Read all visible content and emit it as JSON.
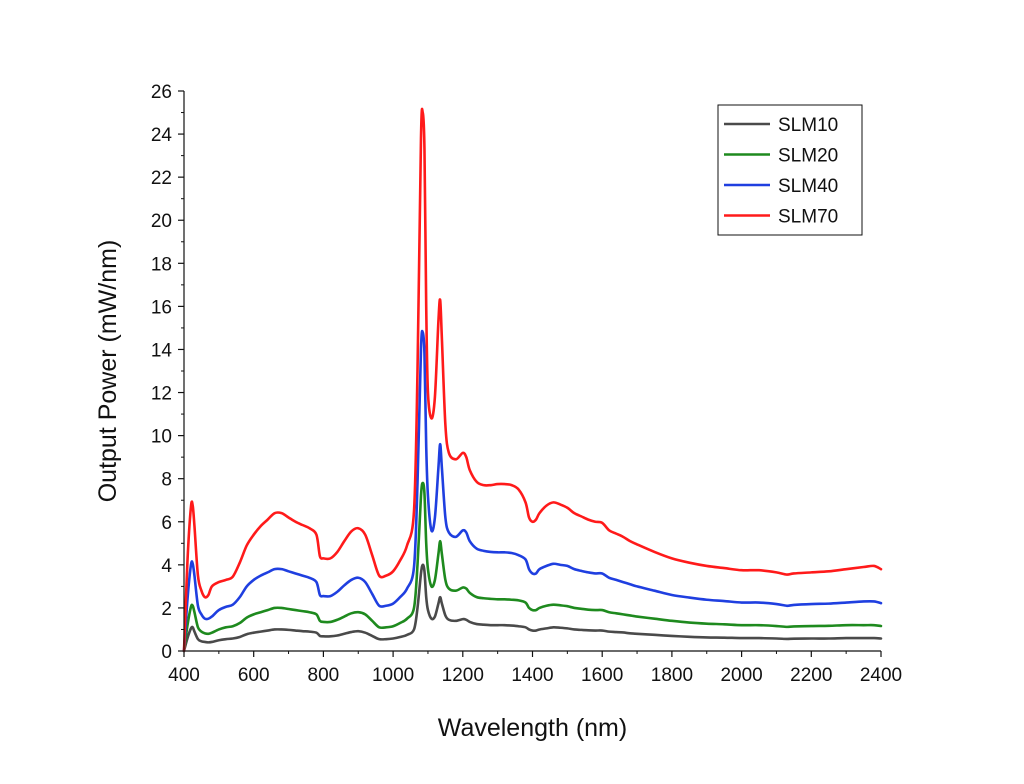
{
  "chart_data": {
    "type": "line",
    "title": "",
    "xlabel": "Wavelength (nm)",
    "ylabel": "Output Power (mW/nm)",
    "xlim": [
      400,
      2400
    ],
    "ylim": [
      0,
      26
    ],
    "xticks": [
      400,
      600,
      800,
      1000,
      1200,
      1400,
      1600,
      1800,
      2000,
      2200,
      2400
    ],
    "yticks": [
      0,
      2,
      4,
      6,
      8,
      10,
      12,
      14,
      16,
      18,
      20,
      22,
      24,
      26
    ],
    "grid": false,
    "legend_position": "top-right",
    "x": [
      400,
      410,
      420,
      425,
      430,
      440,
      450,
      460,
      470,
      480,
      500,
      520,
      540,
      560,
      580,
      600,
      620,
      640,
      660,
      680,
      700,
      720,
      740,
      760,
      780,
      790,
      800,
      820,
      840,
      860,
      880,
      900,
      920,
      940,
      960,
      980,
      1000,
      1020,
      1040,
      1060,
      1070,
      1080,
      1085,
      1090,
      1095,
      1100,
      1110,
      1120,
      1130,
      1135,
      1140,
      1150,
      1160,
      1180,
      1200,
      1210,
      1220,
      1240,
      1260,
      1280,
      1300,
      1320,
      1340,
      1360,
      1380,
      1390,
      1400,
      1410,
      1420,
      1440,
      1460,
      1480,
      1500,
      1520,
      1540,
      1560,
      1580,
      1600,
      1620,
      1640,
      1660,
      1680,
      1700,
      1750,
      1800,
      1850,
      1900,
      1950,
      2000,
      2050,
      2100,
      2130,
      2150,
      2200,
      2250,
      2300,
      2350,
      2380,
      2400
    ],
    "series": [
      {
        "name": "SLM10",
        "color": "#4a4a4a",
        "values": [
          0,
          0.6,
          1.05,
          1.1,
          0.9,
          0.55,
          0.45,
          0.42,
          0.4,
          0.42,
          0.5,
          0.55,
          0.58,
          0.65,
          0.78,
          0.85,
          0.9,
          0.95,
          1.0,
          1.0,
          0.98,
          0.95,
          0.92,
          0.9,
          0.85,
          0.7,
          0.68,
          0.68,
          0.72,
          0.8,
          0.88,
          0.92,
          0.85,
          0.7,
          0.55,
          0.55,
          0.58,
          0.65,
          0.75,
          1.0,
          2.0,
          3.6,
          4.0,
          3.7,
          2.5,
          1.9,
          1.5,
          1.6,
          2.2,
          2.5,
          2.2,
          1.65,
          1.45,
          1.4,
          1.48,
          1.45,
          1.35,
          1.25,
          1.22,
          1.2,
          1.2,
          1.2,
          1.18,
          1.15,
          1.1,
          1.0,
          0.95,
          0.95,
          1.0,
          1.05,
          1.1,
          1.08,
          1.05,
          1.0,
          0.98,
          0.96,
          0.95,
          0.95,
          0.9,
          0.88,
          0.86,
          0.82,
          0.8,
          0.75,
          0.7,
          0.66,
          0.63,
          0.62,
          0.6,
          0.6,
          0.58,
          0.56,
          0.57,
          0.58,
          0.58,
          0.6,
          0.6,
          0.6,
          0.58
        ]
      },
      {
        "name": "SLM20",
        "color": "#1e8a1e",
        "values": [
          0,
          1.2,
          2.05,
          2.1,
          1.8,
          1.1,
          0.9,
          0.82,
          0.8,
          0.85,
          1.0,
          1.1,
          1.15,
          1.3,
          1.55,
          1.7,
          1.8,
          1.9,
          2.0,
          2.0,
          1.95,
          1.9,
          1.85,
          1.8,
          1.7,
          1.4,
          1.35,
          1.35,
          1.45,
          1.6,
          1.75,
          1.8,
          1.7,
          1.4,
          1.1,
          1.1,
          1.15,
          1.3,
          1.5,
          2.0,
          4.0,
          7.2,
          7.8,
          7.3,
          5.0,
          3.8,
          3.0,
          3.3,
          4.5,
          5.1,
          4.5,
          3.3,
          2.9,
          2.8,
          2.95,
          2.9,
          2.7,
          2.5,
          2.45,
          2.42,
          2.4,
          2.4,
          2.38,
          2.35,
          2.25,
          2.0,
          1.9,
          1.9,
          2.0,
          2.1,
          2.15,
          2.12,
          2.08,
          2.0,
          1.96,
          1.92,
          1.9,
          1.9,
          1.8,
          1.75,
          1.7,
          1.65,
          1.6,
          1.5,
          1.4,
          1.32,
          1.27,
          1.24,
          1.2,
          1.2,
          1.16,
          1.12,
          1.14,
          1.16,
          1.17,
          1.2,
          1.2,
          1.2,
          1.16
        ]
      },
      {
        "name": "SLM40",
        "color": "#1f3fe0",
        "values": [
          0,
          2.4,
          4.0,
          4.05,
          3.5,
          2.1,
          1.7,
          1.5,
          1.5,
          1.6,
          1.9,
          2.05,
          2.15,
          2.5,
          3.0,
          3.3,
          3.5,
          3.65,
          3.8,
          3.8,
          3.7,
          3.6,
          3.5,
          3.4,
          3.2,
          2.6,
          2.55,
          2.55,
          2.75,
          3.05,
          3.3,
          3.4,
          3.2,
          2.65,
          2.1,
          2.1,
          2.2,
          2.5,
          2.9,
          3.9,
          7.8,
          14.0,
          14.8,
          13.8,
          9.5,
          7.2,
          5.6,
          6.2,
          8.5,
          9.6,
          8.5,
          6.2,
          5.5,
          5.3,
          5.6,
          5.5,
          5.1,
          4.75,
          4.65,
          4.6,
          4.58,
          4.58,
          4.55,
          4.45,
          4.25,
          3.8,
          3.6,
          3.6,
          3.8,
          3.95,
          4.05,
          4.0,
          3.95,
          3.8,
          3.72,
          3.65,
          3.6,
          3.6,
          3.4,
          3.3,
          3.2,
          3.1,
          3.0,
          2.8,
          2.6,
          2.48,
          2.38,
          2.32,
          2.25,
          2.25,
          2.18,
          2.1,
          2.14,
          2.18,
          2.2,
          2.25,
          2.3,
          2.3,
          2.22
        ]
      },
      {
        "name": "SLM70",
        "color": "#ff1a1a",
        "values": [
          0,
          4.2,
          6.7,
          6.75,
          5.8,
          3.5,
          2.8,
          2.5,
          2.6,
          3.0,
          3.2,
          3.3,
          3.45,
          4.1,
          4.9,
          5.4,
          5.8,
          6.1,
          6.4,
          6.4,
          6.2,
          6.0,
          5.85,
          5.7,
          5.4,
          4.4,
          4.3,
          4.3,
          4.6,
          5.1,
          5.55,
          5.7,
          5.4,
          4.45,
          3.5,
          3.5,
          3.7,
          4.2,
          4.9,
          6.5,
          13.0,
          23.8,
          25.0,
          23.3,
          16.0,
          12.0,
          10.8,
          11.8,
          15.3,
          16.3,
          14.5,
          10.5,
          9.2,
          8.9,
          9.2,
          9.0,
          8.4,
          7.85,
          7.7,
          7.7,
          7.75,
          7.75,
          7.7,
          7.5,
          6.9,
          6.2,
          6.0,
          6.1,
          6.4,
          6.75,
          6.9,
          6.8,
          6.65,
          6.4,
          6.25,
          6.1,
          6.0,
          5.95,
          5.6,
          5.45,
          5.3,
          5.1,
          4.95,
          4.6,
          4.3,
          4.1,
          3.95,
          3.85,
          3.75,
          3.75,
          3.65,
          3.55,
          3.6,
          3.65,
          3.7,
          3.8,
          3.9,
          3.95,
          3.8
        ]
      }
    ]
  }
}
